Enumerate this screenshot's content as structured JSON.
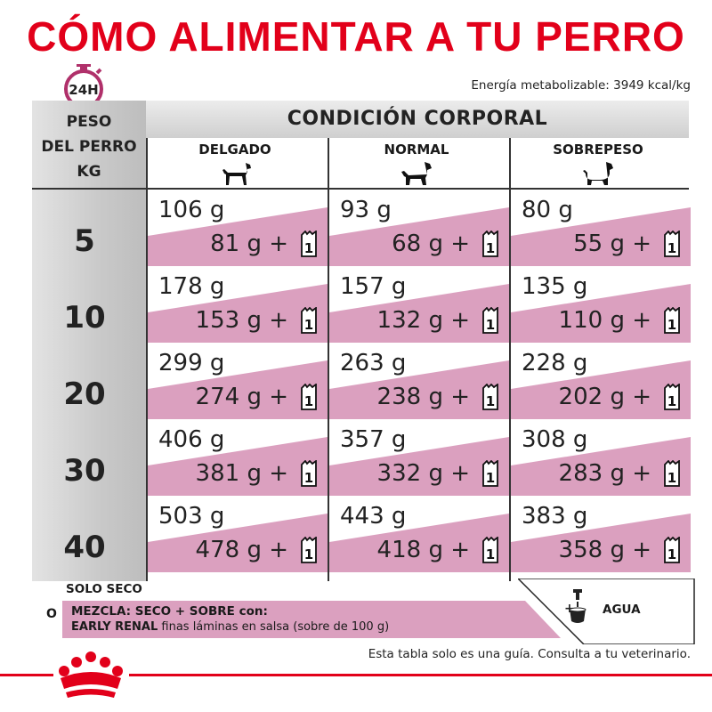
{
  "title": "CÓMO ALIMENTAR A TU PERRO",
  "clock_label": "24H",
  "energy": "Energía metabolizable: 3949 kcal/kg",
  "header": {
    "weight_line1": "PESO",
    "weight_line2": "DEL PERRO",
    "weight_line3": "KG",
    "condition": "CONDICIÓN CORPORAL",
    "columns": [
      "DELGADO",
      "NORMAL",
      "SOBREPESO"
    ]
  },
  "rows": [
    {
      "weight": "5",
      "cells": [
        {
          "dry": "106 g",
          "mix": "81 g +"
        },
        {
          "dry": "93 g",
          "mix": "68 g +"
        },
        {
          "dry": "80 g",
          "mix": "55 g +"
        }
      ]
    },
    {
      "weight": "10",
      "cells": [
        {
          "dry": "178 g",
          "mix": "153 g +"
        },
        {
          "dry": "157 g",
          "mix": "132 g +"
        },
        {
          "dry": "135 g",
          "mix": "110 g +"
        }
      ]
    },
    {
      "weight": "20",
      "cells": [
        {
          "dry": "299 g",
          "mix": "274 g +"
        },
        {
          "dry": "263 g",
          "mix": "238 g +"
        },
        {
          "dry": "228 g",
          "mix": "202 g +"
        }
      ]
    },
    {
      "weight": "30",
      "cells": [
        {
          "dry": "406 g",
          "mix": "381 g +"
        },
        {
          "dry": "357 g",
          "mix": "332 g +"
        },
        {
          "dry": "308 g",
          "mix": "283 g +"
        }
      ]
    },
    {
      "weight": "40",
      "cells": [
        {
          "dry": "503 g",
          "mix": "478 g +"
        },
        {
          "dry": "443 g",
          "mix": "418 g +"
        },
        {
          "dry": "383 g",
          "mix": "358 g +"
        }
      ]
    }
  ],
  "pouch_count": "1",
  "legend": {
    "solo_seco": "SOLO SECO",
    "o": "O",
    "mezcla": "MEZCLA: SECO + SOBRE con:",
    "early_bold": "EARLY RENAL",
    "early_rest": " finas láminas en salsa (sobre de 100 g)",
    "plus": "+",
    "agua": "AGUA"
  },
  "footer": "Esta tabla solo es una guía. Consulta a tu veterinario.",
  "colors": {
    "accent": "#e2001a",
    "pink": "#dba0bf",
    "magenta": "#b0306a"
  }
}
